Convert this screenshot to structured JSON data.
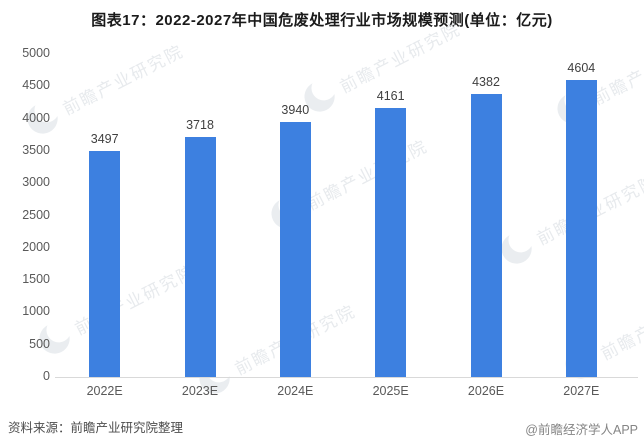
{
  "title": "图表17：2022-2027年中国危废处理行业市场规模预测(单位：亿元)",
  "footer": {
    "source": "资料来源：前瞻产业研究院整理",
    "credit": "@前瞻经济学人APP"
  },
  "watermark": {
    "text": "前瞻产业研究院",
    "logo": "crescent-moon-logo"
  },
  "colors": {
    "bar": "#3D80E0",
    "axis_label": "#595959",
    "value_label": "#404040",
    "baseline": "#d9d9d9",
    "title_text": "#1a1a1a",
    "source_text": "#4d4d4d",
    "credit_text": "#858585",
    "watermark": "#e0e4e8"
  },
  "chart_data": {
    "type": "bar",
    "categories": [
      "2022E",
      "2023E",
      "2024E",
      "2025E",
      "2026E",
      "2027E"
    ],
    "values": [
      3497,
      3718,
      3940,
      4161,
      4382,
      4604
    ],
    "title": "图表17：2022-2027年中国危废处理行业市场规模预测(单位：亿元)",
    "xlabel": "",
    "ylabel": "",
    "unit": "亿元",
    "ylim": [
      0,
      5000
    ],
    "ytick_step": 500,
    "grid": false,
    "legend": null,
    "data_labels": true,
    "bar_color": "#3D80E0"
  }
}
